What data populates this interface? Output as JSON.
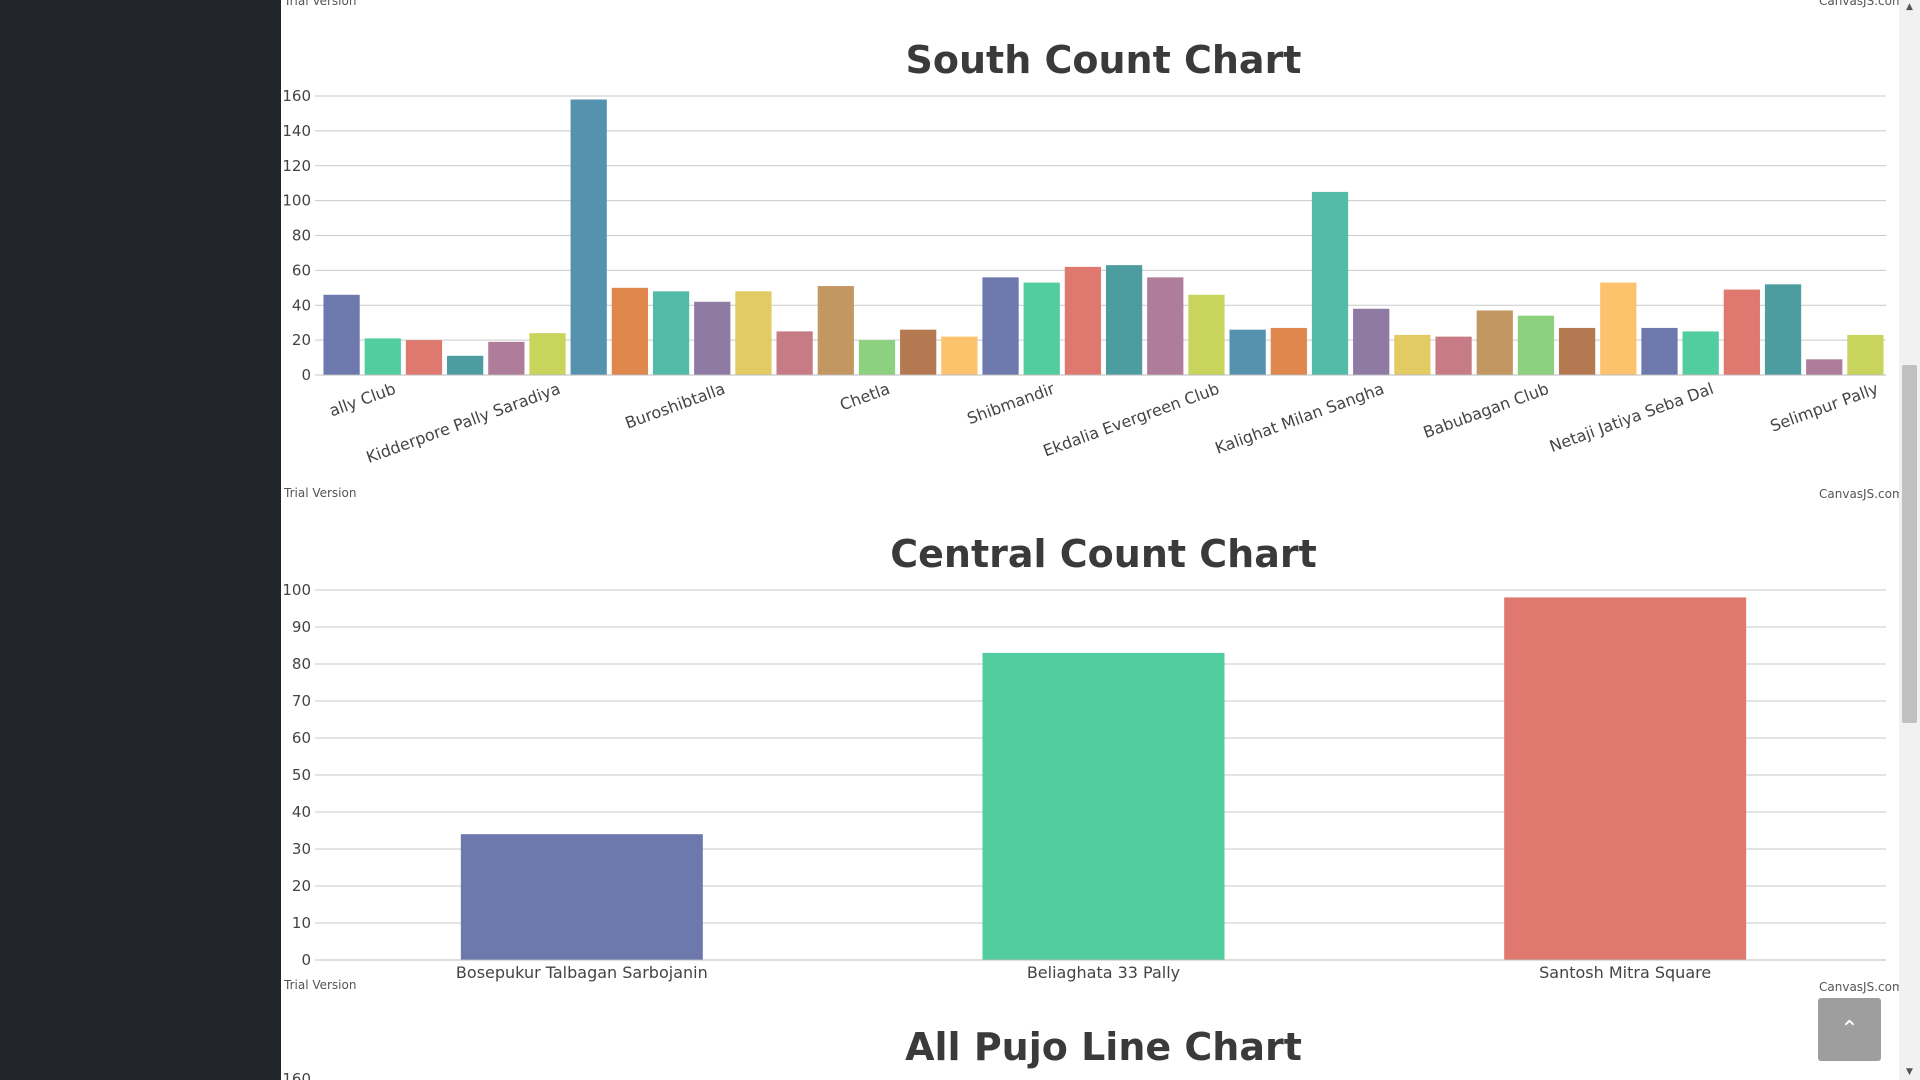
{
  "watermarks": {
    "trial": "Trial Version",
    "brand": "CanvasJS.com"
  },
  "scroll_top_icon": "chevron-up-icon",
  "scrollbar_icons": {
    "up": "▲",
    "down": "▼"
  },
  "back_to_top_glyph": "⌃",
  "south_chart": {
    "chart_data": {
      "type": "bar",
      "title": "South Count Chart",
      "ylim": [
        0,
        160
      ],
      "yticks": [
        0,
        20,
        40,
        60,
        80,
        100,
        120,
        140,
        160
      ],
      "grid": true,
      "x_labels_visible": [
        "ally Club",
        "Kidderpore Pally Saradiya",
        "Buroshibtalla",
        "Chetla",
        "Shibmandir",
        "Ekdalia Evergreen Club",
        "Kalighat Milan Sangha",
        "Babubagan Club",
        "Netaji Jatiya Seba Dal",
        "Selimpur Pally"
      ],
      "values": [
        46,
        21,
        20,
        11,
        19,
        24,
        158,
        50,
        48,
        42,
        48,
        25,
        51,
        20,
        26,
        22,
        56,
        53,
        62,
        63,
        56,
        46,
        26,
        27,
        105,
        38,
        23,
        22,
        37,
        34,
        27,
        53,
        27,
        25,
        49,
        52,
        9,
        23
      ],
      "colors": [
        "#6D78AD",
        "#51CDA0",
        "#DF7970",
        "#4C9CA0",
        "#AE7D99",
        "#C9D45C",
        "#5592AD",
        "#DF874D",
        "#52BCA8",
        "#8E7AA3",
        "#E3CB64",
        "#C77B85",
        "#C39762",
        "#8DD17E",
        "#B57952",
        "#FCC26C"
      ]
    }
  },
  "central_chart": {
    "chart_data": {
      "type": "bar",
      "title": "Central Count Chart",
      "categories": [
        "Bosepukur Talbagan Sarbojanin",
        "Beliaghata 33 Pally",
        "Santosh Mitra Square"
      ],
      "values": [
        34,
        83,
        98
      ],
      "ylim": [
        0,
        100
      ],
      "yticks": [
        0,
        10,
        20,
        30,
        40,
        50,
        60,
        70,
        80,
        90,
        100
      ],
      "grid": true,
      "colors": [
        "#6D78AD",
        "#51CDA0",
        "#DF7970"
      ]
    }
  },
  "line_chart": {
    "chart_data": {
      "type": "line",
      "title": "All Pujo Line Chart",
      "yticks_visible": [
        160
      ]
    }
  }
}
